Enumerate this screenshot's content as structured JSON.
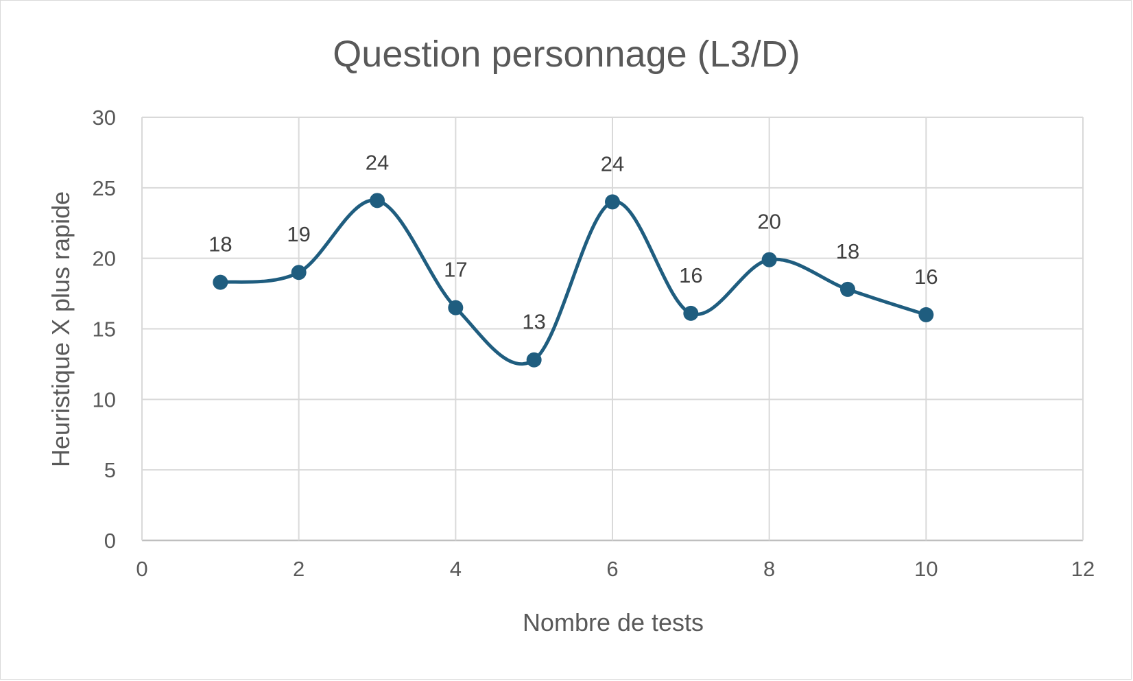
{
  "chart_data": {
    "type": "scatter",
    "style": "smooth-line-with-markers",
    "title": "Question personnage (L3/D)",
    "xlabel": "Nombre de tests",
    "ylabel": "Heuristique X plus rapide",
    "xlim": [
      0,
      12
    ],
    "ylim": [
      0,
      30
    ],
    "x_ticks": [
      0,
      2,
      4,
      6,
      8,
      10,
      12
    ],
    "y_ticks": [
      0,
      5,
      10,
      15,
      20,
      25,
      30
    ],
    "grid": true,
    "legend": "none",
    "color": "#1f5d7f",
    "series": [
      {
        "x": [
          1,
          2,
          3,
          4,
          5,
          6,
          7,
          8,
          9,
          10
        ],
        "y": [
          18.3,
          19,
          24.1,
          16.5,
          12.8,
          24,
          16.1,
          19.9,
          17.8,
          16
        ],
        "labels": [
          "18",
          "19",
          "24",
          "17",
          "13",
          "24",
          "16",
          "20",
          "18",
          "16"
        ]
      }
    ]
  }
}
